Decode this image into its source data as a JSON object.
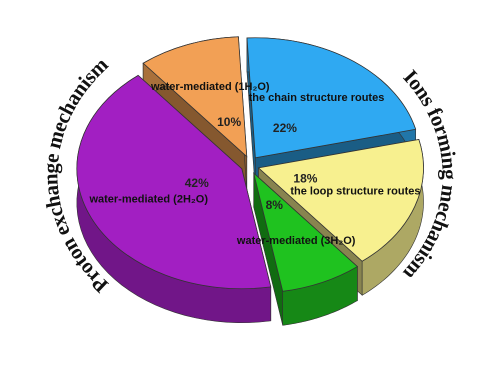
{
  "chart_data": {
    "type": "pie",
    "categories": [
      "water-mediated (1H₂O)",
      "the chain structure routes",
      "the loop structure routes",
      "water-mediated (3H₂O)",
      "water-mediated (2H₂O)"
    ],
    "values": [
      10,
      22,
      18,
      8,
      42
    ],
    "value_labels": [
      "10%",
      "22%",
      "18%",
      "8%",
      "42%"
    ],
    "colors": [
      "#f2a055",
      "#2fa9f2",
      "#f7f08f",
      "#1fc21f",
      "#a21fc2"
    ],
    "annotations": [
      "Proton exchange mechanism",
      "Ions forming mechanism"
    ]
  }
}
